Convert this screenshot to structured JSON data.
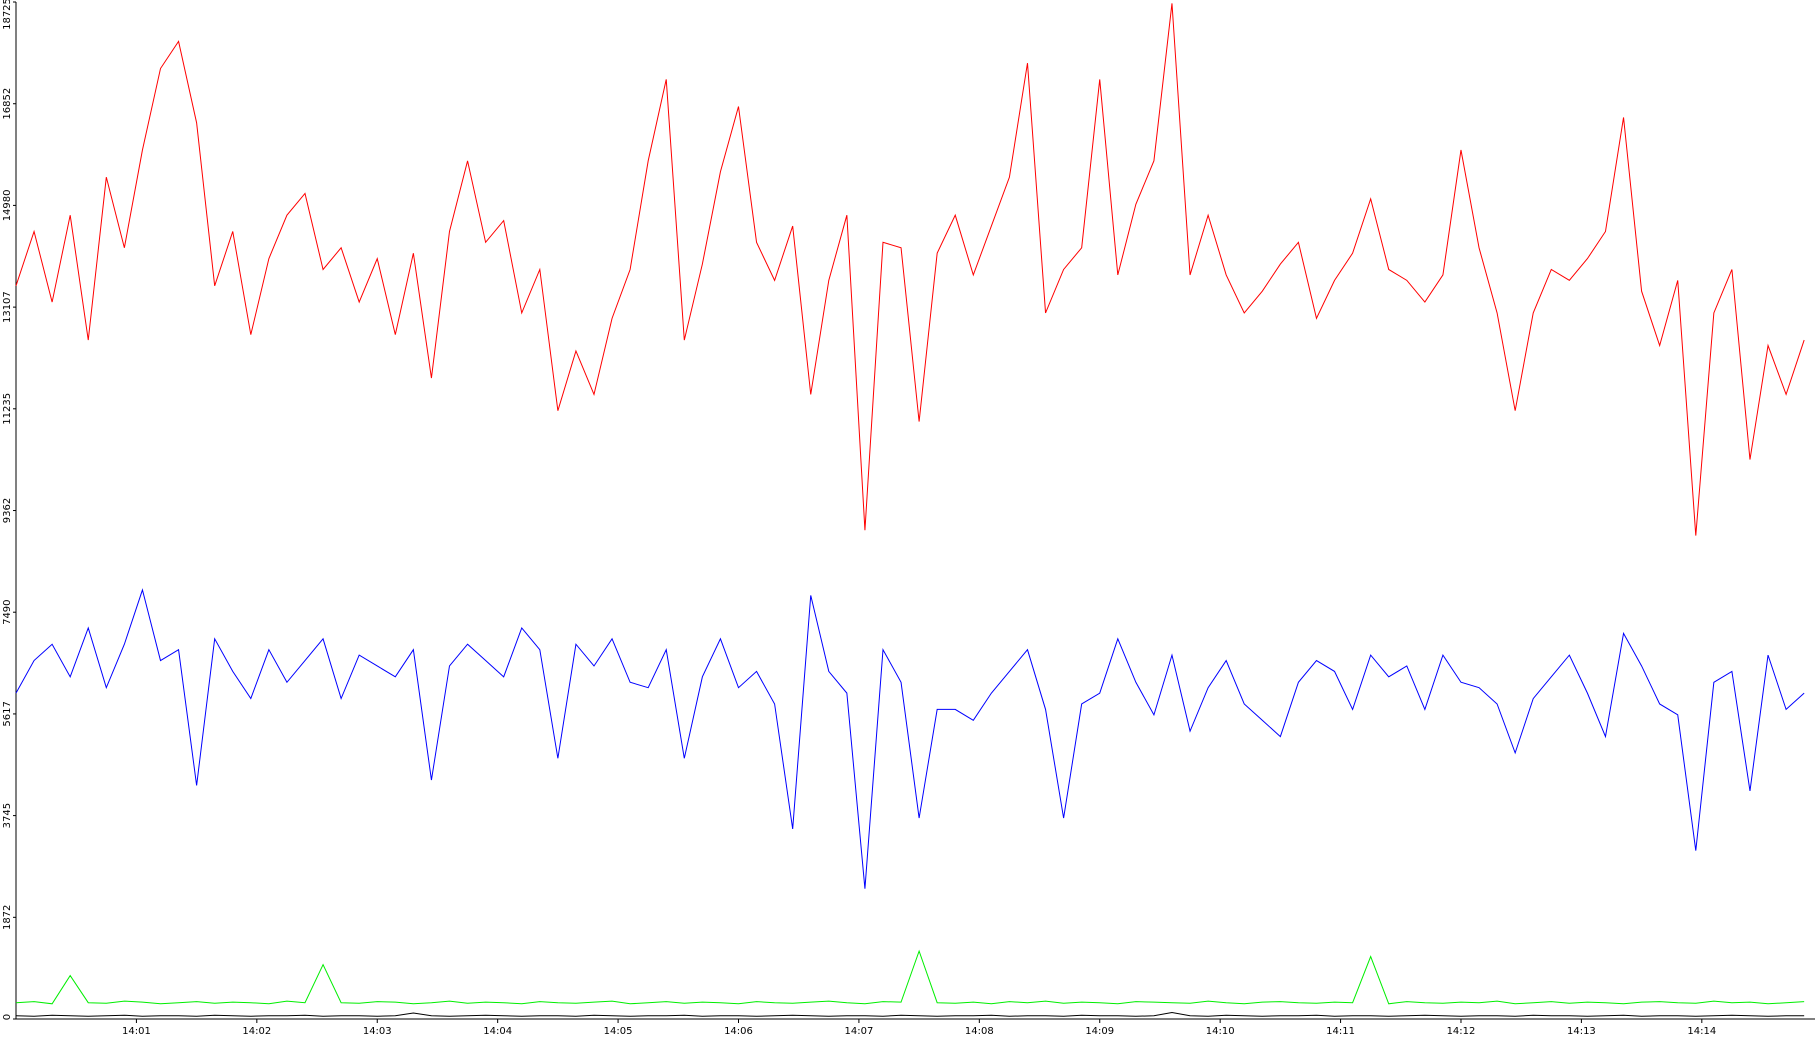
{
  "chart_data": {
    "type": "line",
    "xlim": [
      840,
      854.94
    ],
    "xticks": [
      {
        "value": 841,
        "label": "14:01"
      },
      {
        "value": 842,
        "label": "14:02"
      },
      {
        "value": 843,
        "label": "14:03"
      },
      {
        "value": 844,
        "label": "14:04"
      },
      {
        "value": 845,
        "label": "14:05"
      },
      {
        "value": 846,
        "label": "14:06"
      },
      {
        "value": 847,
        "label": "14:07"
      },
      {
        "value": 848,
        "label": "14:08"
      },
      {
        "value": 849,
        "label": "14:09"
      },
      {
        "value": 850,
        "label": "14:10"
      },
      {
        "value": 851,
        "label": "14:11"
      },
      {
        "value": 852,
        "label": "14:12"
      },
      {
        "value": 853,
        "label": "14:13"
      },
      {
        "value": 854,
        "label": "14:14"
      }
    ],
    "ylim": [
      0,
      18725
    ],
    "yticks": [
      0,
      1872,
      3745,
      5617,
      7490,
      9362,
      11235,
      13107,
      14980,
      16852,
      18725
    ],
    "x": [
      840,
      840.15,
      840.3,
      840.45,
      840.6,
      840.75,
      840.9,
      841.05,
      841.2,
      841.35,
      841.5,
      841.65,
      841.8,
      841.95,
      842.1,
      842.25,
      842.4,
      842.55,
      842.7,
      842.85,
      843,
      843.15,
      843.3,
      843.45,
      843.6,
      843.75,
      843.9,
      844.05,
      844.2,
      844.35,
      844.5,
      844.65,
      844.8,
      844.95,
      845.1,
      845.25,
      845.4,
      845.55,
      845.7,
      845.85,
      846,
      846.15,
      846.3,
      846.45,
      846.6,
      846.75,
      846.9,
      847.05,
      847.2,
      847.35,
      847.5,
      847.65,
      847.8,
      847.95,
      848.1,
      848.25,
      848.4,
      848.55,
      848.7,
      848.85,
      849,
      849.15,
      849.3,
      849.45,
      849.6,
      849.75,
      849.9,
      850.05,
      850.2,
      850.35,
      850.5,
      850.65,
      850.8,
      850.95,
      851.1,
      851.25,
      851.4,
      851.55,
      851.7,
      851.85,
      852,
      852.15,
      852.3,
      852.45,
      852.6,
      852.75,
      852.9,
      853.05,
      853.2,
      853.35,
      853.5,
      853.65,
      853.8,
      853.95,
      854.1,
      854.25,
      854.4,
      854.55,
      854.7,
      854.85
    ],
    "series": [
      {
        "color": "#ff0000",
        "values": [
          13500,
          14500,
          13200,
          14800,
          12500,
          15500,
          14200,
          16000,
          17500,
          18000,
          16500,
          13500,
          14500,
          12600,
          14000,
          14800,
          15200,
          13800,
          14200,
          13200,
          14000,
          12600,
          14100,
          11800,
          14500,
          15800,
          14300,
          14700,
          13000,
          13800,
          11200,
          12300,
          11500,
          12900,
          13800,
          15800,
          17300,
          12500,
          13900,
          15600,
          16800,
          14300,
          13600,
          14600,
          11500,
          13600,
          14800,
          9000,
          14300,
          14200,
          11000,
          14100,
          14800,
          13700,
          14600,
          15500,
          17600,
          13000,
          13800,
          14200,
          17300,
          13700,
          15000,
          15800,
          18700,
          13700,
          14800,
          13700,
          13000,
          13400,
          13900,
          14300,
          12900,
          13600,
          14100,
          15100,
          13800,
          13600,
          13200,
          13700,
          16000,
          14200,
          13000,
          11200,
          13000,
          13800,
          13600,
          14000,
          14500,
          16600,
          13400,
          12400,
          13600,
          8900,
          13000,
          13800,
          10300,
          12400,
          11500,
          12500
        ]
      },
      {
        "color": "#0000ff",
        "values": [
          6000,
          6600,
          6900,
          6300,
          7200,
          6100,
          6900,
          7900,
          6600,
          6800,
          4300,
          7000,
          6400,
          5900,
          6800,
          6200,
          6600,
          7000,
          5900,
          6700,
          6500,
          6300,
          6800,
          4400,
          6500,
          6900,
          6600,
          6300,
          7200,
          6800,
          4800,
          6900,
          6500,
          7000,
          6200,
          6100,
          6800,
          4800,
          6300,
          7000,
          6100,
          6400,
          5800,
          3500,
          7800,
          6400,
          6000,
          2400,
          6800,
          6200,
          3700,
          5700,
          5700,
          5500,
          6000,
          6400,
          6800,
          5700,
          3700,
          5800,
          6000,
          7000,
          6200,
          5600,
          6700,
          5300,
          6100,
          6600,
          5800,
          5500,
          5200,
          6200,
          6600,
          6400,
          5700,
          6700,
          6300,
          6500,
          5700,
          6700,
          6200,
          6100,
          5800,
          4900,
          5900,
          6300,
          6700,
          6000,
          5200,
          7100,
          6500,
          5800,
          5600,
          3100,
          6200,
          6400,
          4200,
          6700,
          5700,
          6000
        ]
      },
      {
        "color": "#00ee00",
        "values": [
          300,
          320,
          280,
          800,
          300,
          290,
          330,
          310,
          280,
          300,
          320,
          290,
          310,
          300,
          280,
          330,
          300,
          1000,
          300,
          290,
          320,
          310,
          280,
          300,
          330,
          290,
          310,
          300,
          280,
          320,
          300,
          290,
          310,
          330,
          280,
          300,
          320,
          290,
          310,
          300,
          280,
          320,
          300,
          290,
          310,
          330,
          300,
          280,
          320,
          310,
          1250,
          300,
          290,
          310,
          280,
          320,
          300,
          330,
          290,
          310,
          300,
          280,
          320,
          310,
          300,
          290,
          330,
          300,
          280,
          310,
          320,
          300,
          290,
          310,
          300,
          1150,
          280,
          320,
          300,
          290,
          310,
          300,
          330,
          280,
          300,
          320,
          290,
          310,
          300,
          280,
          310,
          320,
          300,
          290,
          330,
          300,
          310,
          280,
          300,
          320
        ]
      },
      {
        "color": "#000000",
        "values": [
          60,
          50,
          70,
          60,
          50,
          60,
          70,
          50,
          60,
          60,
          50,
          70,
          60,
          50,
          60,
          60,
          70,
          50,
          60,
          60,
          50,
          60,
          110,
          60,
          50,
          60,
          70,
          60,
          50,
          60,
          60,
          50,
          70,
          60,
          50,
          60,
          60,
          70,
          50,
          60,
          60,
          50,
          60,
          70,
          60,
          50,
          60,
          60,
          50,
          70,
          60,
          50,
          60,
          60,
          70,
          50,
          60,
          60,
          50,
          70,
          60,
          60,
          50,
          60,
          120,
          60,
          50,
          70,
          60,
          50,
          60,
          60,
          70,
          50,
          60,
          60,
          50,
          60,
          70,
          60,
          50,
          60,
          60,
          50,
          70,
          60,
          60,
          50,
          60,
          70,
          50,
          60,
          60,
          50,
          60,
          70,
          60,
          50,
          60,
          60
        ]
      }
    ]
  }
}
